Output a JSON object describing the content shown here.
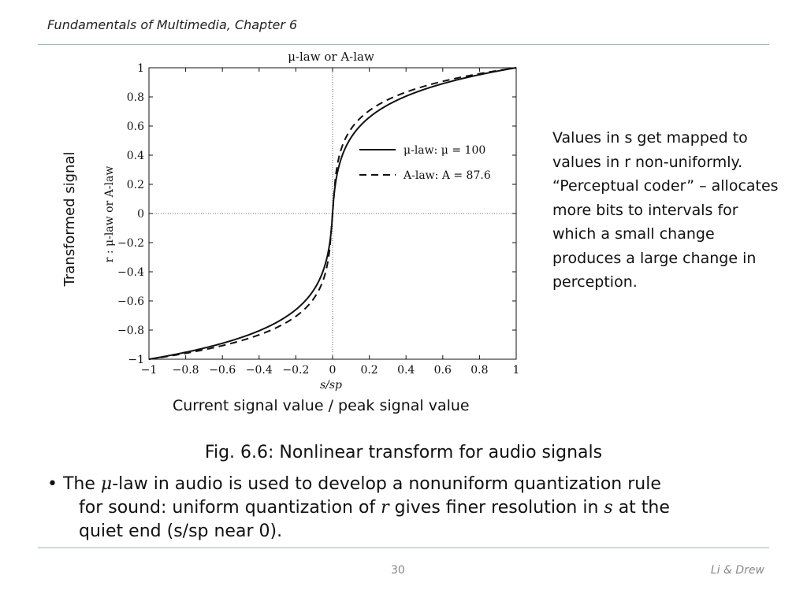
{
  "header": {
    "title": "Fundamentals of Multimedia, Chapter 6"
  },
  "side_note": {
    "text": "Values in s get mapped to values in r non-uniformly. “Perceptual coder” – allocates more bits to intervals for which a small change produces a large change in perception."
  },
  "labels": {
    "y_outer": "Transformed signal",
    "x_outer": "Current signal value / peak signal value"
  },
  "caption": {
    "text": "Fig. 6.6: Nonlinear transform for audio signals"
  },
  "bullet": {
    "bullet_char": "•",
    "part1": "The ",
    "mu": "μ",
    "part2": "-law in audio is used to develop a nonuniform quantization rule",
    "part3": "for sound: uniform quantization of ",
    "r": "r",
    "part4": " gives finer resolution in ",
    "s": "s",
    "part5": " at the",
    "part6": "quiet end (s/sp near 0)."
  },
  "footer": {
    "page": "30",
    "authors": "Li & Drew"
  },
  "chart_data": {
    "type": "line",
    "title": "μ-law or A-law",
    "xlabel": "s/sp",
    "ylabel": "r : μ-law or A-law",
    "xlim": [
      -1,
      1
    ],
    "ylim": [
      -1,
      1
    ],
    "x_ticks": [
      "−1",
      "−0.8",
      "−0.6",
      "−0.4",
      "−0.2",
      "0",
      "0.2",
      "0.4",
      "0.6",
      "0.8",
      "1"
    ],
    "y_ticks": [
      "1",
      "0.8",
      "0.6",
      "0.4",
      "0.2",
      "0",
      "−0.2",
      "−0.4",
      "−0.6",
      "−0.8",
      "−1"
    ],
    "grid": false,
    "legend_placement": "center-right",
    "series": [
      {
        "name": "μ-law: μ = 100",
        "style": "solid",
        "mu": 100,
        "x": [
          -1,
          -0.8,
          -0.6,
          -0.4,
          -0.2,
          -0.1,
          -0.05,
          -0.02,
          0,
          0.02,
          0.05,
          0.1,
          0.2,
          0.4,
          0.6,
          0.8,
          1
        ],
        "values": [
          -1,
          -0.952,
          -0.889,
          -0.802,
          -0.653,
          -0.52,
          -0.389,
          -0.236,
          0,
          0.236,
          0.389,
          0.52,
          0.653,
          0.802,
          0.889,
          0.952,
          1
        ]
      },
      {
        "name": "A-law: A = 87.6",
        "style": "dashed",
        "A": 87.6,
        "x": [
          -1,
          -0.8,
          -0.6,
          -0.4,
          -0.2,
          -0.1,
          -0.05,
          -0.02,
          0,
          0.02,
          0.05,
          0.1,
          0.2,
          0.4,
          0.6,
          0.8,
          1
        ],
        "values": [
          -1,
          -0.96,
          -0.907,
          -0.834,
          -0.709,
          -0.582,
          -0.456,
          -0.29,
          0,
          0.29,
          0.456,
          0.582,
          0.709,
          0.834,
          0.907,
          0.96,
          1
        ]
      }
    ]
  }
}
